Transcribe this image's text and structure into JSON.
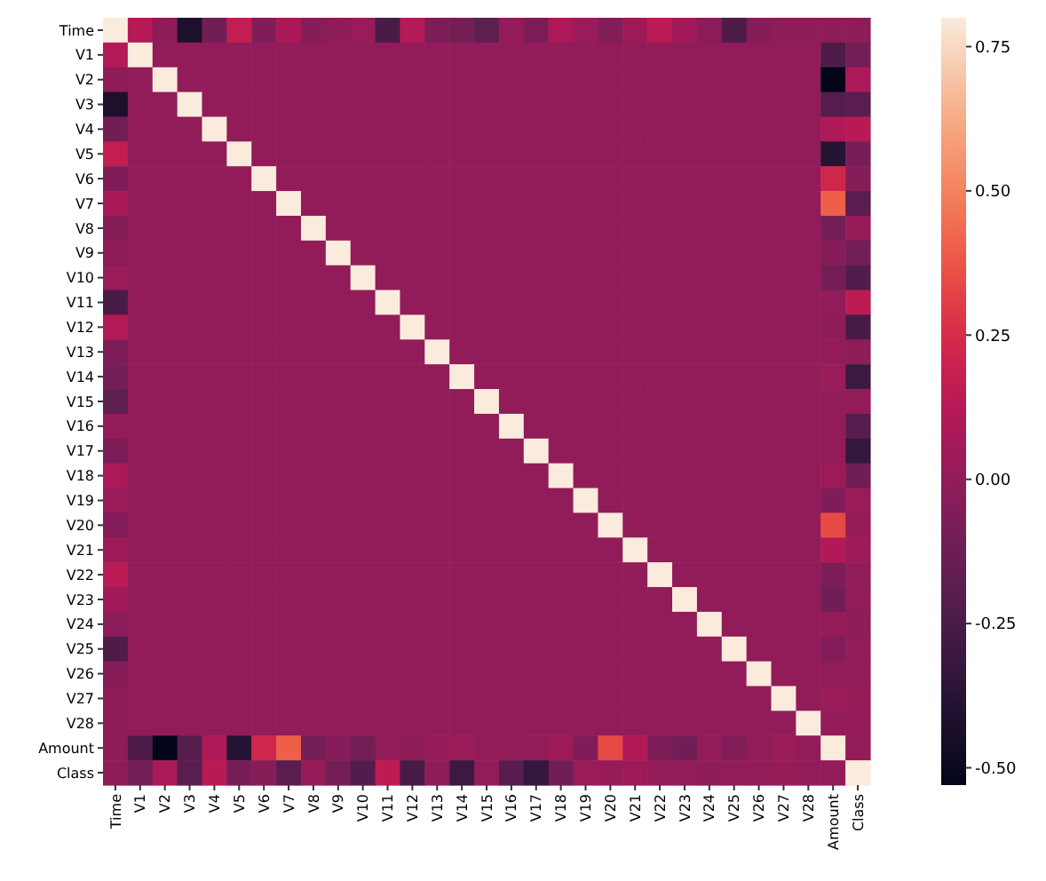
{
  "chart_data": {
    "type": "heatmap",
    "categories": [
      "Time",
      "V1",
      "V2",
      "V3",
      "V4",
      "V5",
      "V6",
      "V7",
      "V8",
      "V9",
      "V10",
      "V11",
      "V12",
      "V13",
      "V14",
      "V15",
      "V16",
      "V17",
      "V18",
      "V19",
      "V20",
      "V21",
      "V22",
      "V23",
      "V24",
      "V25",
      "V26",
      "V27",
      "V28",
      "Amount",
      "Class"
    ],
    "y_categories": [
      "Time",
      "V1",
      "V2",
      "V3",
      "V4",
      "V5",
      "V6",
      "V7",
      "V8",
      "V9",
      "V10",
      "V11",
      "V12",
      "V13",
      "V14",
      "V15",
      "V16",
      "V17",
      "V18",
      "V19",
      "V20",
      "V21",
      "V22",
      "V23",
      "V24",
      "V25",
      "V26",
      "V27",
      "V28",
      "Amount",
      "Class"
    ],
    "clim": [
      -0.53,
      0.8
    ],
    "cticks": [
      {
        "value": -0.5,
        "label": "-0.50"
      },
      {
        "value": -0.25,
        "label": "-0.25"
      },
      {
        "value": 0,
        "label": "0.00"
      },
      {
        "value": 0.25,
        "label": "0.25"
      },
      {
        "value": 0.5,
        "label": "0.50"
      },
      {
        "value": 0.75,
        "label": "0.75"
      }
    ],
    "cells": [
      [
        0.8,
        0.12,
        -0.01,
        -0.42,
        -0.11,
        0.17,
        -0.06,
        0.08,
        -0.04,
        -0.01,
        0.03,
        -0.25,
        0.12,
        -0.07,
        -0.1,
        -0.18,
        0.01,
        -0.07,
        0.09,
        0.03,
        -0.05,
        0.04,
        0.14,
        0.05,
        -0.02,
        -0.23,
        -0.04,
        -0.01,
        -0.01,
        -0.01,
        -0.01
      ],
      [
        0.12,
        0.8,
        0,
        0,
        0,
        0,
        0,
        0,
        0,
        0,
        0,
        0,
        0,
        0,
        0,
        0,
        0,
        0,
        0,
        0,
        0,
        0,
        0,
        0,
        0,
        0,
        0,
        0,
        0,
        -0.23,
        -0.1
      ],
      [
        -0.01,
        0,
        0.8,
        0,
        0,
        0,
        0,
        0,
        0,
        0,
        0,
        0,
        0,
        0,
        0,
        0,
        0,
        0,
        0,
        0,
        0,
        0,
        0,
        0,
        0,
        0,
        0,
        0,
        0,
        -0.53,
        0.09
      ],
      [
        -0.42,
        0,
        0,
        0.8,
        0,
        0,
        0,
        0,
        0,
        0,
        0,
        0,
        0,
        0,
        0,
        0,
        0,
        0,
        0,
        0,
        0,
        0,
        0,
        0,
        0,
        0,
        0,
        0,
        0,
        -0.21,
        -0.19
      ],
      [
        -0.11,
        0,
        0,
        0,
        0.8,
        0,
        0,
        0,
        0,
        0,
        0,
        0,
        0,
        0,
        0,
        0,
        0,
        0,
        0,
        0,
        0,
        0,
        0,
        0,
        0,
        0,
        0,
        0,
        0,
        0.1,
        0.13
      ],
      [
        0.17,
        0,
        0,
        0,
        0,
        0.8,
        0,
        0,
        0,
        0,
        0,
        0,
        0,
        0,
        0,
        0,
        0,
        0,
        0,
        0,
        0,
        0,
        0,
        0,
        0,
        0,
        0,
        0,
        0,
        -0.39,
        -0.09
      ],
      [
        -0.06,
        0,
        0,
        0,
        0,
        0,
        0.8,
        0,
        0,
        0,
        0,
        0,
        0,
        0,
        0,
        0,
        0,
        0,
        0,
        0,
        0,
        0,
        0,
        0,
        0,
        0,
        0,
        0,
        0,
        0.22,
        -0.04
      ],
      [
        0.08,
        0,
        0,
        0,
        0,
        0,
        0,
        0.8,
        0,
        0,
        0,
        0,
        0,
        0,
        0,
        0,
        0,
        0,
        0,
        0,
        0,
        0,
        0,
        0,
        0,
        0,
        0,
        0,
        0,
        0.4,
        -0.19
      ],
      [
        -0.04,
        0,
        0,
        0,
        0,
        0,
        0,
        0,
        0.8,
        0,
        0,
        0,
        0,
        0,
        0,
        0,
        0,
        0,
        0,
        0,
        0,
        0,
        0,
        0,
        0,
        0,
        0,
        0,
        0,
        -0.1,
        0.02
      ],
      [
        -0.01,
        0,
        0,
        0,
        0,
        0,
        0,
        0,
        0,
        0.8,
        0,
        0,
        0,
        0,
        0,
        0,
        0,
        0,
        0,
        0,
        0,
        0,
        0,
        0,
        0,
        0,
        0,
        0,
        0,
        -0.04,
        -0.1
      ],
      [
        0.03,
        0,
        0,
        0,
        0,
        0,
        0,
        0,
        0,
        0,
        0.8,
        0,
        0,
        0,
        0,
        0,
        0,
        0,
        0,
        0,
        0,
        0,
        0,
        0,
        0,
        0,
        0,
        0,
        0,
        -0.1,
        -0.22
      ],
      [
        -0.25,
        0,
        0,
        0,
        0,
        0,
        0,
        0,
        0,
        0,
        0,
        0.8,
        0,
        0,
        0,
        0,
        0,
        0,
        0,
        0,
        0,
        0,
        0,
        0,
        0,
        0,
        0,
        0,
        0,
        0,
        0.15
      ],
      [
        0.12,
        0,
        0,
        0,
        0,
        0,
        0,
        0,
        0,
        0,
        0,
        0,
        0.8,
        0,
        0,
        0,
        0,
        0,
        0,
        0,
        0,
        0,
        0,
        0,
        0,
        0,
        0,
        0,
        0,
        -0.01,
        -0.26
      ],
      [
        -0.07,
        0,
        0,
        0,
        0,
        0,
        0,
        0,
        0,
        0,
        0,
        0,
        0,
        0.8,
        0,
        0,
        0,
        0,
        0,
        0,
        0,
        0,
        0,
        0,
        0,
        0,
        0,
        0,
        0,
        0.01,
        -0.01
      ],
      [
        -0.1,
        0,
        0,
        0,
        0,
        0,
        0,
        0,
        0,
        0,
        0,
        0,
        0,
        0,
        0.8,
        0,
        0,
        0,
        0,
        0,
        0,
        0,
        0,
        0,
        0,
        0,
        0,
        0,
        0,
        0.03,
        -0.3
      ],
      [
        -0.18,
        0,
        0,
        0,
        0,
        0,
        0,
        0,
        0,
        0,
        0,
        0,
        0,
        0,
        0,
        0.8,
        0,
        0,
        0,
        0,
        0,
        0,
        0,
        0,
        0,
        0,
        0,
        0,
        0,
        0,
        0
      ],
      [
        0.01,
        0,
        0,
        0,
        0,
        0,
        0,
        0,
        0,
        0,
        0,
        0,
        0,
        0,
        0,
        0,
        0.8,
        0,
        0,
        0,
        0,
        0,
        0,
        0,
        0,
        0,
        0,
        0,
        0,
        0,
        -0.2
      ],
      [
        -0.07,
        0,
        0,
        0,
        0,
        0,
        0,
        0,
        0,
        0,
        0,
        0,
        0,
        0,
        0,
        0,
        0,
        0.8,
        0,
        0,
        0,
        0,
        0,
        0,
        0,
        0,
        0,
        0,
        0,
        0.01,
        -0.33
      ],
      [
        0.09,
        0,
        0,
        0,
        0,
        0,
        0,
        0,
        0,
        0,
        0,
        0,
        0,
        0,
        0,
        0,
        0,
        0,
        0.8,
        0,
        0,
        0,
        0,
        0,
        0,
        0,
        0,
        0,
        0,
        0.04,
        -0.11
      ],
      [
        0.03,
        0,
        0,
        0,
        0,
        0,
        0,
        0,
        0,
        0,
        0,
        0,
        0,
        0,
        0,
        0,
        0,
        0,
        0,
        0.8,
        0,
        0,
        0,
        0,
        0,
        0,
        0,
        0,
        0,
        -0.06,
        0.03
      ],
      [
        -0.05,
        0,
        0,
        0,
        0,
        0,
        0,
        0,
        0,
        0,
        0,
        0,
        0,
        0,
        0,
        0,
        0,
        0,
        0,
        0,
        0.8,
        0,
        0,
        0,
        0,
        0,
        0,
        0,
        0,
        0.34,
        0.02
      ],
      [
        0.04,
        0,
        0,
        0,
        0,
        0,
        0,
        0,
        0,
        0,
        0,
        0,
        0,
        0,
        0,
        0,
        0,
        0,
        0,
        0,
        0,
        0.8,
        0,
        0,
        0,
        0,
        0,
        0,
        0,
        0.11,
        0.04
      ],
      [
        0.14,
        0,
        0,
        0,
        0,
        0,
        0,
        0,
        0,
        0,
        0,
        0,
        0,
        0,
        0,
        0,
        0,
        0,
        0,
        0,
        0,
        0,
        0.8,
        0,
        0,
        0,
        0,
        0,
        0,
        -0.07,
        0
      ],
      [
        0.05,
        0,
        0,
        0,
        0,
        0,
        0,
        0,
        0,
        0,
        0,
        0,
        0,
        0,
        0,
        0,
        0,
        0,
        0,
        0,
        0,
        0,
        0,
        0.8,
        0,
        0,
        0,
        0,
        0,
        -0.11,
        0
      ],
      [
        -0.02,
        0,
        0,
        0,
        0,
        0,
        0,
        0,
        0,
        0,
        0,
        0,
        0,
        0,
        0,
        0,
        0,
        0,
        0,
        0,
        0,
        0,
        0,
        0,
        0.8,
        0,
        0,
        0,
        0,
        0.01,
        -0.01
      ],
      [
        -0.23,
        0,
        0,
        0,
        0,
        0,
        0,
        0,
        0,
        0,
        0,
        0,
        0,
        0,
        0,
        0,
        0,
        0,
        0,
        0,
        0,
        0,
        0,
        0,
        0,
        0.8,
        0,
        0,
        0,
        -0.05,
        0
      ],
      [
        -0.04,
        0,
        0,
        0,
        0,
        0,
        0,
        0,
        0,
        0,
        0,
        0,
        0,
        0,
        0,
        0,
        0,
        0,
        0,
        0,
        0,
        0,
        0,
        0,
        0,
        0,
        0.8,
        0,
        0,
        0,
        0
      ],
      [
        -0.01,
        0,
        0,
        0,
        0,
        0,
        0,
        0,
        0,
        0,
        0,
        0,
        0,
        0,
        0,
        0,
        0,
        0,
        0,
        0,
        0,
        0,
        0,
        0,
        0,
        0,
        0,
        0.8,
        0,
        0.03,
        0.02
      ],
      [
        -0.01,
        0,
        0,
        0,
        0,
        0,
        0,
        0,
        0,
        0,
        0,
        0,
        0,
        0,
        0,
        0,
        0,
        0,
        0,
        0,
        0,
        0,
        0,
        0,
        0,
        0,
        0,
        0,
        0.8,
        0.01,
        0.01
      ],
      [
        -0.01,
        -0.23,
        -0.53,
        -0.21,
        0.1,
        -0.39,
        0.22,
        0.4,
        -0.1,
        -0.04,
        -0.1,
        0,
        -0.01,
        0.01,
        0.03,
        0,
        0,
        0.01,
        0.04,
        -0.06,
        0.34,
        0.11,
        -0.07,
        -0.11,
        0.01,
        -0.05,
        0,
        0.03,
        0.01,
        0.8,
        0.01
      ],
      [
        -0.01,
        -0.1,
        0.09,
        -0.19,
        0.13,
        -0.09,
        -0.04,
        -0.19,
        0.02,
        -0.1,
        -0.22,
        0.15,
        -0.26,
        -0.01,
        -0.3,
        0,
        -0.2,
        -0.33,
        -0.11,
        0.03,
        0.02,
        0.04,
        0,
        0,
        -0.01,
        0,
        0,
        0.02,
        0.01,
        0.01,
        0.8
      ]
    ]
  }
}
